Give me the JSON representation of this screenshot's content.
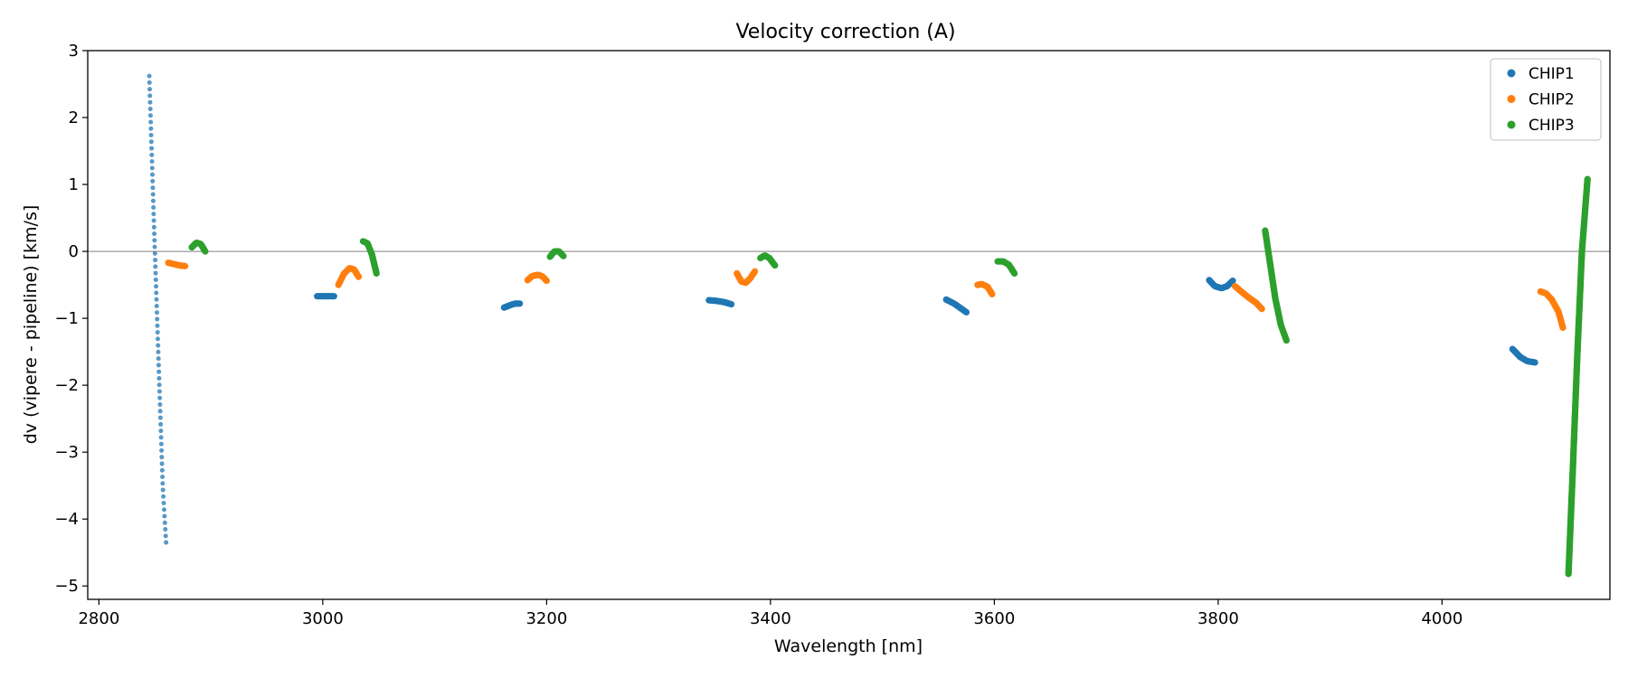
{
  "chart_data": {
    "type": "scatter",
    "title": "Velocity correction (A)",
    "xlabel": "Wavelength [nm]",
    "ylabel": "dv (vipere - pipeline) [km/s]",
    "xlim": [
      2790,
      4150
    ],
    "ylim": [
      -5.2,
      3.0
    ],
    "x_ticks": [
      2800,
      3000,
      3200,
      3400,
      3600,
      3800,
      4000
    ],
    "y_ticks": [
      3,
      2,
      1,
      0,
      -1,
      -2,
      -3,
      -4,
      -5
    ],
    "x_tick_labels": [
      "2800",
      "3000",
      "3200",
      "3400",
      "3600",
      "3800",
      "4000"
    ],
    "y_tick_labels": [
      "3",
      "2",
      "1",
      "0",
      "−1",
      "−2",
      "−3",
      "−4",
      "−5"
    ],
    "zero_line": true,
    "grid": false,
    "legend_position": "top-right",
    "series": [
      {
        "name": "CHIP1",
        "color": "#1f77b4",
        "segments": [
          {
            "x": [
              2845,
              2849,
              2853,
              2857,
              2860
            ],
            "y": [
              2.62,
              0.5,
              -1.5,
              -3.5,
              -4.35
            ],
            "style": "sparse"
          },
          {
            "x": [
              2995,
              3000,
              3005,
              3010
            ],
            "y": [
              -0.67,
              -0.67,
              -0.67,
              -0.67
            ]
          },
          {
            "x": [
              3162,
              3168,
              3172,
              3176
            ],
            "y": [
              -0.84,
              -0.8,
              -0.78,
              -0.78
            ]
          },
          {
            "x": [
              3345,
              3352,
              3359,
              3365
            ],
            "y": [
              -0.73,
              -0.74,
              -0.76,
              -0.79
            ]
          },
          {
            "x": [
              3557,
              3564,
              3570,
              3575
            ],
            "y": [
              -0.72,
              -0.78,
              -0.85,
              -0.91
            ]
          },
          {
            "x": [
              3792,
              3797,
              3803,
              3808,
              3813
            ],
            "y": [
              -0.43,
              -0.52,
              -0.55,
              -0.52,
              -0.44
            ]
          },
          {
            "x": [
              4063,
              4070,
              4076,
              4083
            ],
            "y": [
              -1.46,
              -1.58,
              -1.64,
              -1.66
            ]
          }
        ]
      },
      {
        "name": "CHIP2",
        "color": "#ff7f0e",
        "segments": [
          {
            "x": [
              2862,
              2867,
              2872,
              2877
            ],
            "y": [
              -0.17,
              -0.19,
              -0.21,
              -0.22
            ]
          },
          {
            "x": [
              3014,
              3019,
              3024,
              3028,
              3032
            ],
            "y": [
              -0.5,
              -0.33,
              -0.25,
              -0.27,
              -0.38
            ]
          },
          {
            "x": [
              3183,
              3187,
              3192,
              3196,
              3200
            ],
            "y": [
              -0.43,
              -0.37,
              -0.35,
              -0.37,
              -0.44
            ]
          },
          {
            "x": [
              3370,
              3374,
              3378,
              3382,
              3386
            ],
            "y": [
              -0.33,
              -0.45,
              -0.47,
              -0.4,
              -0.3
            ]
          },
          {
            "x": [
              3585,
              3589,
              3594,
              3598
            ],
            "y": [
              -0.5,
              -0.49,
              -0.53,
              -0.64
            ]
          },
          {
            "x": [
              3815,
              3822,
              3828,
              3834,
              3839
            ],
            "y": [
              -0.52,
              -0.62,
              -0.7,
              -0.77,
              -0.86
            ]
          },
          {
            "x": [
              4088,
              4093,
              4098,
              4104,
              4108
            ],
            "y": [
              -0.6,
              -0.63,
              -0.72,
              -0.9,
              -1.14
            ]
          }
        ]
      },
      {
        "name": "CHIP3",
        "color": "#2ca02c",
        "segments": [
          {
            "x": [
              2883,
              2887,
              2891,
              2895
            ],
            "y": [
              0.06,
              0.13,
              0.11,
              0.0
            ]
          },
          {
            "x": [
              3036,
              3040,
              3044,
              3048
            ],
            "y": [
              0.15,
              0.12,
              -0.05,
              -0.33
            ]
          },
          {
            "x": [
              3203,
              3207,
              3211,
              3215
            ],
            "y": [
              -0.08,
              0.0,
              0.0,
              -0.07
            ]
          },
          {
            "x": [
              3391,
              3395,
              3399,
              3404
            ],
            "y": [
              -0.1,
              -0.06,
              -0.1,
              -0.21
            ]
          },
          {
            "x": [
              3603,
              3608,
              3613,
              3618
            ],
            "y": [
              -0.15,
              -0.15,
              -0.2,
              -0.33
            ]
          },
          {
            "x": [
              3842,
              3847,
              3851,
              3856,
              3861
            ],
            "y": [
              0.31,
              -0.25,
              -0.7,
              -1.1,
              -1.33
            ]
          },
          {
            "x": [
              4113,
              4117,
              4121,
              4125,
              4130
            ],
            "y": [
              -4.82,
              -3.2,
              -1.5,
              0.0,
              1.08
            ]
          }
        ]
      }
    ]
  }
}
